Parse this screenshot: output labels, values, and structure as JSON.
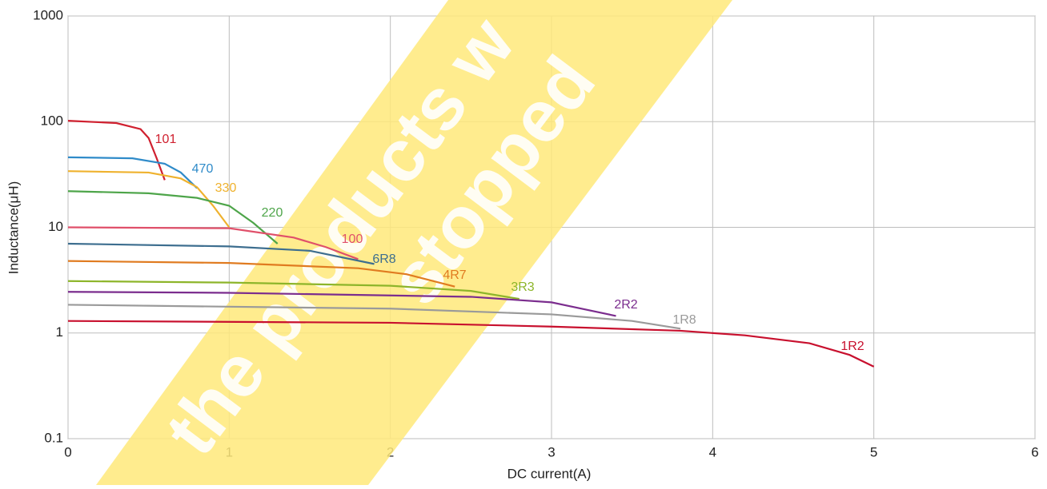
{
  "chart_data": {
    "type": "line",
    "log_y": true,
    "grid": true,
    "xlabel": "DC current(A)",
    "ylabel": "Inductance(μH)",
    "xlim": [
      0,
      6
    ],
    "xticks": [
      0,
      1,
      2,
      3,
      4,
      5,
      6
    ],
    "ylim": [
      0.1,
      1000
    ],
    "yticks": [
      0.1,
      1,
      10,
      100,
      1000
    ],
    "watermark": [
      "the products w",
      "stopped"
    ],
    "series": [
      {
        "name": "101",
        "color": "#d0202f",
        "x": [
          0,
          0.3,
          0.45,
          0.5,
          0.55,
          0.6
        ],
        "values": [
          102,
          97,
          85,
          70,
          45,
          28
        ]
      },
      {
        "name": "470",
        "color": "#2f8bc9",
        "x": [
          0,
          0.4,
          0.6,
          0.7,
          0.8
        ],
        "values": [
          46,
          45,
          40,
          33,
          23.5
        ]
      },
      {
        "name": "330",
        "color": "#efb22e",
        "x": [
          0,
          0.5,
          0.7,
          0.8,
          0.9,
          1.0
        ],
        "values": [
          34,
          33,
          29,
          24,
          16,
          10
        ]
      },
      {
        "name": "220",
        "color": "#4ea54a",
        "x": [
          0,
          0.5,
          0.8,
          1.0,
          1.15,
          1.3
        ],
        "values": [
          22,
          21,
          19,
          16,
          11,
          7
        ]
      },
      {
        "name": "100",
        "color": "#e0506a",
        "x": [
          0,
          1.0,
          1.4,
          1.6,
          1.8
        ],
        "values": [
          10,
          9.8,
          8,
          6.5,
          5
        ]
      },
      {
        "name": "6R8",
        "color": "#3d6e8f",
        "x": [
          0,
          1.0,
          1.5,
          1.9
        ],
        "values": [
          7,
          6.6,
          6,
          4.5
        ]
      },
      {
        "name": "4R7",
        "color": "#e07b20",
        "x": [
          0,
          1.0,
          1.8,
          2.1,
          2.4
        ],
        "values": [
          4.8,
          4.6,
          4.1,
          3.6,
          2.75
        ]
      },
      {
        "name": "3R3",
        "color": "#8db52a",
        "x": [
          0,
          1.0,
          2.0,
          2.5,
          2.8
        ],
        "values": [
          3.1,
          3.0,
          2.8,
          2.5,
          2.1
        ]
      },
      {
        "name": "2R2",
        "color": "#7b2d8e",
        "x": [
          0,
          1.0,
          2.5,
          3.0,
          3.4
        ],
        "values": [
          2.45,
          2.4,
          2.2,
          1.95,
          1.45
        ]
      },
      {
        "name": "1R8",
        "color": "#9a9a9a",
        "x": [
          0,
          2.0,
          3.0,
          3.5,
          3.8
        ],
        "values": [
          1.85,
          1.7,
          1.5,
          1.3,
          1.1
        ]
      },
      {
        "name": "1R2",
        "color": "#c8102e",
        "x": [
          0,
          2.0,
          3.0,
          3.8,
          4.2,
          4.6,
          4.85,
          5.0
        ],
        "values": [
          1.3,
          1.25,
          1.15,
          1.05,
          0.95,
          0.8,
          0.62,
          0.48
        ]
      }
    ]
  }
}
